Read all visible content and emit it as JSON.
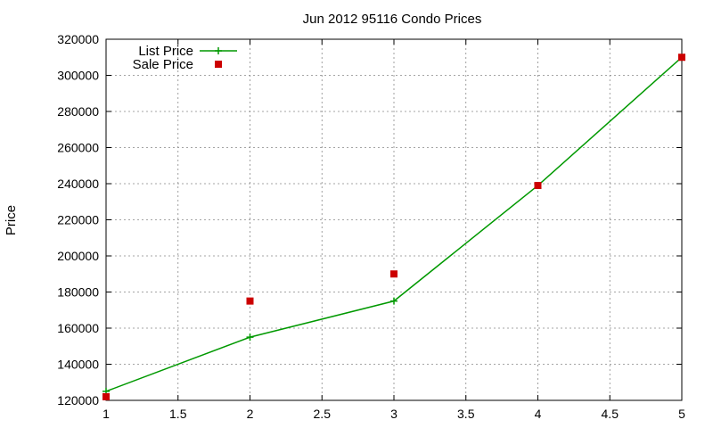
{
  "chart_data": {
    "type": "line",
    "title": "Jun 2012 95116 Condo Prices",
    "xlabel": "",
    "ylabel": "Price",
    "xlim": [
      1,
      5
    ],
    "ylim": [
      120000,
      320000
    ],
    "xticks": [
      "1",
      "1.5",
      "2",
      "2.5",
      "3",
      "3.5",
      "4",
      "4.5",
      "5"
    ],
    "yticks": [
      "120000",
      "140000",
      "160000",
      "180000",
      "200000",
      "220000",
      "240000",
      "260000",
      "280000",
      "300000",
      "320000"
    ],
    "grid": true,
    "legend_position": "top-left",
    "series": [
      {
        "name": "List Price",
        "style": "line-points",
        "marker": "plus",
        "color": "#009900",
        "x": [
          1,
          2,
          3,
          4,
          5
        ],
        "y": [
          125000,
          155000,
          175000,
          239000,
          310000
        ]
      },
      {
        "name": "Sale Price",
        "style": "points",
        "marker": "square",
        "color": "#cc0000",
        "x": [
          1,
          2,
          3,
          4,
          5
        ],
        "y": [
          122000,
          175000,
          190000,
          239000,
          310000
        ]
      }
    ]
  }
}
